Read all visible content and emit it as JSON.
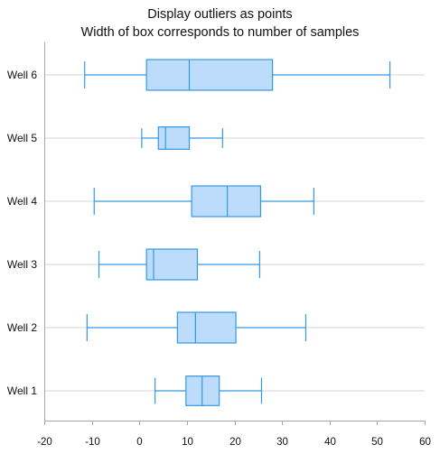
{
  "chart_data": {
    "type": "boxplot",
    "orientation": "horizontal",
    "title": [
      "Display outliers as points",
      "Width of box corresponds to number of samples"
    ],
    "xlabel": "",
    "ylabel": "",
    "xlim": [
      -20,
      60
    ],
    "xticks": [
      -20,
      -10,
      0,
      10,
      20,
      30,
      40,
      50,
      60
    ],
    "categories": [
      "Well 6",
      "Well 5",
      "Well 4",
      "Well 3",
      "Well 2",
      "Well 1"
    ],
    "series": [
      {
        "category": "Well 6",
        "min": -11.5,
        "q1": 1.5,
        "median": 10.5,
        "q3": 28,
        "max": 52.7,
        "relative_width": 1.0
      },
      {
        "category": "Well 5",
        "min": 0.5,
        "q1": 4,
        "median": 5.5,
        "q3": 10.5,
        "max": 17.5,
        "relative_width": 0.73
      },
      {
        "category": "Well 4",
        "min": -9.5,
        "q1": 11,
        "median": 18.5,
        "q3": 25.5,
        "max": 36.7,
        "relative_width": 1.0
      },
      {
        "category": "Well 3",
        "min": -8.5,
        "q1": 1.5,
        "median": 3,
        "q3": 12.2,
        "max": 25.3,
        "relative_width": 1.0
      },
      {
        "category": "Well 2",
        "min": -11,
        "q1": 8,
        "median": 11.8,
        "q3": 20.3,
        "max": 35,
        "relative_width": 1.0
      },
      {
        "category": "Well 1",
        "min": 3.3,
        "q1": 9.8,
        "median": 13.2,
        "q3": 16.8,
        "max": 25.7,
        "relative_width": 0.96
      }
    ],
    "grid": {
      "horizontal": true,
      "vertical": false
    },
    "colors": {
      "box_fill": "#bddcfb",
      "box_stroke": "#3399e6",
      "grid": "#d4d4d4",
      "axis": "#a6a6a6"
    }
  }
}
